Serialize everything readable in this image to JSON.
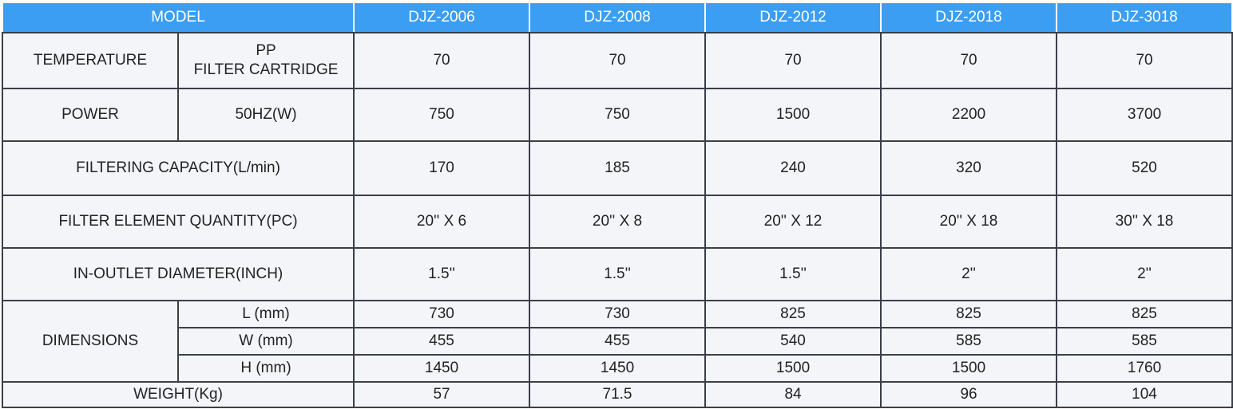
{
  "table": {
    "header": {
      "model_label": "MODEL",
      "models": [
        "DJZ-2006",
        "DJZ-2008",
        "DJZ-2012",
        "DJZ-2018",
        "DJZ-3018"
      ]
    },
    "rows": [
      {
        "label": "TEMPERATURE",
        "sublabel": "PP\nFILTER CARTRIDGE",
        "values": [
          "70",
          "70",
          "70",
          "70",
          "70"
        ]
      },
      {
        "label": "POWER",
        "sublabel": "50HZ(W)",
        "values": [
          "750",
          "750",
          "1500",
          "2200",
          "3700"
        ]
      },
      {
        "label": "FILTERING CAPACITY(L/min)",
        "values": [
          "170",
          "185",
          "240",
          "320",
          "520"
        ]
      },
      {
        "label": "FILTER ELEMENT QUANTITY(PC)",
        "values": [
          "20'' X 6",
          "20'' X 8",
          "20'' X 12",
          "20'' X 18",
          "30'' X 18"
        ]
      },
      {
        "label": "IN-OUTLET DIAMETER(INCH)",
        "values": [
          "1.5''",
          "1.5''",
          "1.5''",
          "2''",
          "2''"
        ]
      },
      {
        "label": "DIMENSIONS",
        "subrows": [
          {
            "label": "L (mm)",
            "values": [
              "730",
              "730",
              "825",
              "825",
              "825"
            ]
          },
          {
            "label": "W (mm)",
            "values": [
              "455",
              "455",
              "540",
              "585",
              "585"
            ]
          },
          {
            "label": "H (mm)",
            "values": [
              "1450",
              "1450",
              "1500",
              "1500",
              "1760"
            ]
          }
        ]
      },
      {
        "label": "WEIGHT(Kg)",
        "values": [
          "57",
          "71.5",
          "84",
          "96",
          "104"
        ]
      }
    ]
  }
}
